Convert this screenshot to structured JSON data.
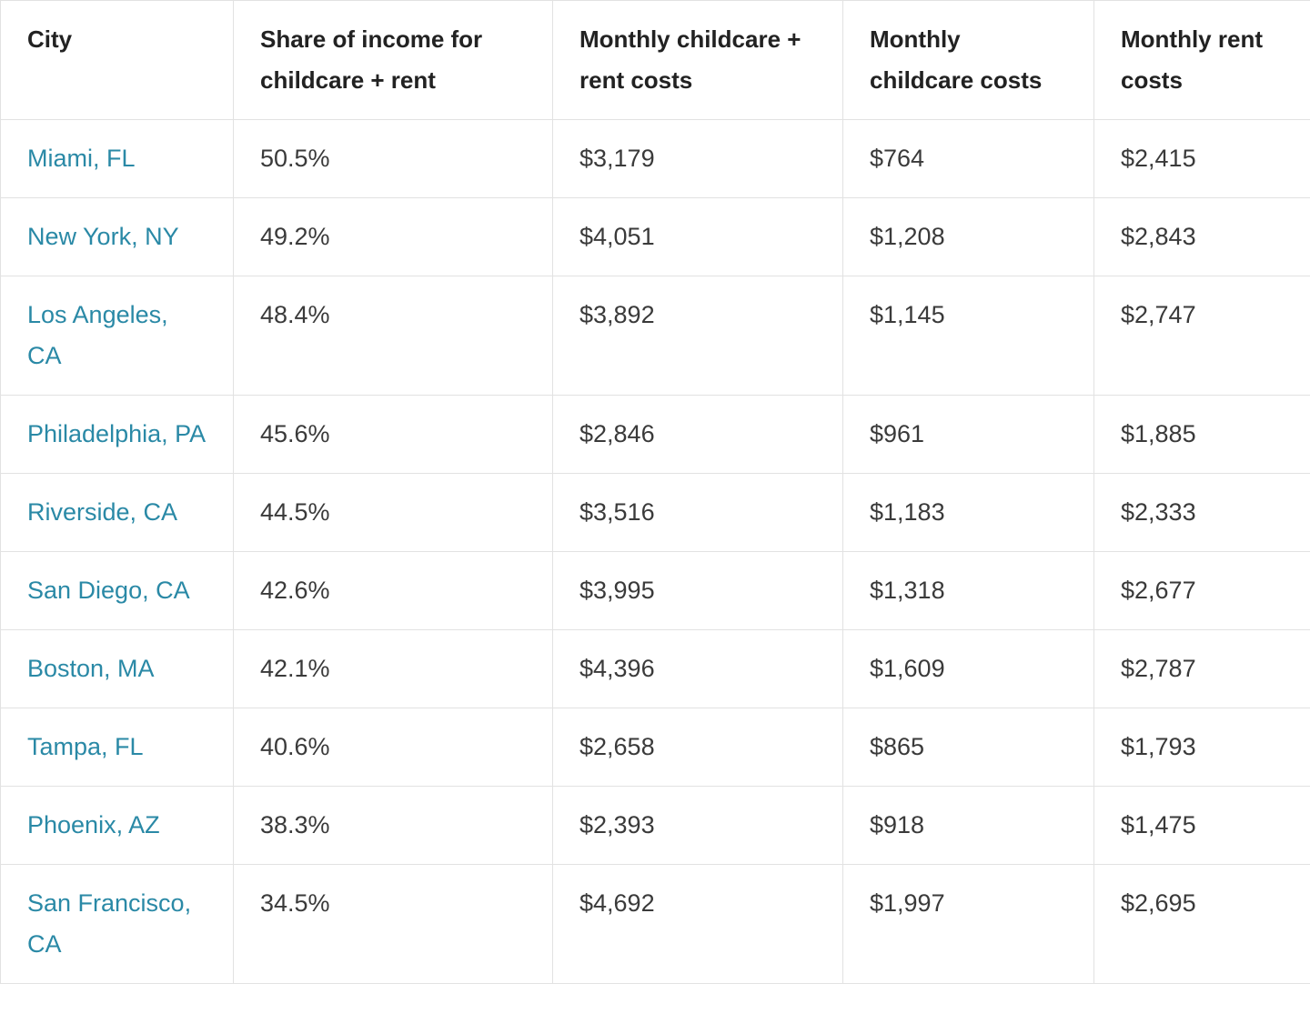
{
  "table": {
    "headers": [
      "City",
      "Share of income for childcare + rent",
      "Monthly childcare + rent costs",
      "Monthly childcare costs",
      "Monthly rent costs"
    ],
    "rows": [
      [
        "Miami, FL",
        "50.5%",
        "$3,179",
        "$764",
        "$2,415"
      ],
      [
        "New York, NY",
        "49.2%",
        "$4,051",
        "$1,208",
        "$2,843"
      ],
      [
        "Los Angeles, CA",
        "48.4%",
        "$3,892",
        "$1,145",
        "$2,747"
      ],
      [
        "Philadelphia, PA",
        "45.6%",
        "$2,846",
        "$961",
        "$1,885"
      ],
      [
        "Riverside, CA",
        "44.5%",
        "$3,516",
        "$1,183",
        "$2,333"
      ],
      [
        "San Diego, CA",
        "42.6%",
        "$3,995",
        "$1,318",
        "$2,677"
      ],
      [
        "Boston, MA",
        "42.1%",
        "$4,396",
        "$1,609",
        "$2,787"
      ],
      [
        "Tampa, FL",
        "40.6%",
        "$2,658",
        "$865",
        "$1,793"
      ],
      [
        "Phoenix, AZ",
        "38.3%",
        "$2,393",
        "$918",
        "$1,475"
      ],
      [
        "San Francisco, CA",
        "34.5%",
        "$4,692",
        "$1,997",
        "$2,695"
      ]
    ]
  }
}
